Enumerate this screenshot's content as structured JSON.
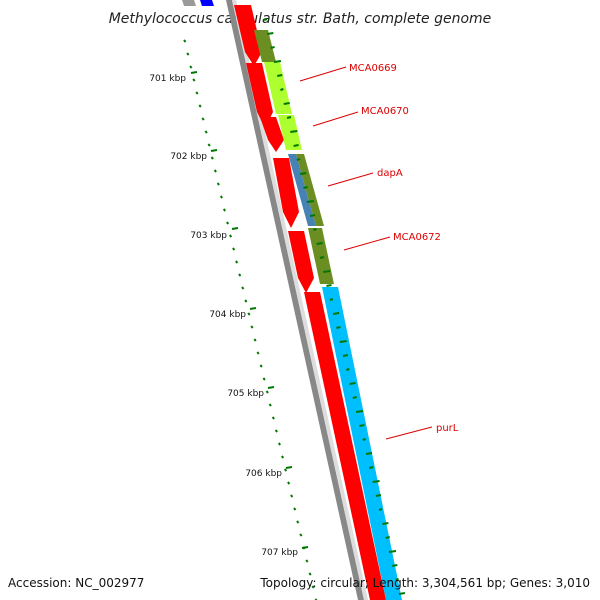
{
  "header": {
    "title": "Methylococcus capsulatus str. Bath, complete genome"
  },
  "footer": {
    "accession": "Accession: NC_002977",
    "summary": "Topology: circular; Length: 3,304,561 bp; Genes: 3,010"
  },
  "colors": {
    "backbone": "#888888",
    "forward_gene": "#ff0000",
    "cog_olive": "#6b8e23",
    "cog_lime": "#adff2f",
    "cog_steelblue": "#4682b4",
    "cog_skyblue": "#00bfff",
    "top_blue": "#0000ff",
    "tick_green": "#007700",
    "label_red": "#dd0000"
  },
  "kbp_markers": [
    {
      "label": "701 kbp"
    },
    {
      "label": "702 kbp"
    },
    {
      "label": "703 kbp"
    },
    {
      "label": "704 kbp"
    },
    {
      "label": "705 kbp"
    },
    {
      "label": "706 kbp"
    },
    {
      "label": "707 kbp"
    }
  ],
  "genes": [
    {
      "label": "MCA0669"
    },
    {
      "label": "MCA0670"
    },
    {
      "label": "dapA"
    },
    {
      "label": "MCA0672"
    },
    {
      "label": "purL"
    }
  ]
}
